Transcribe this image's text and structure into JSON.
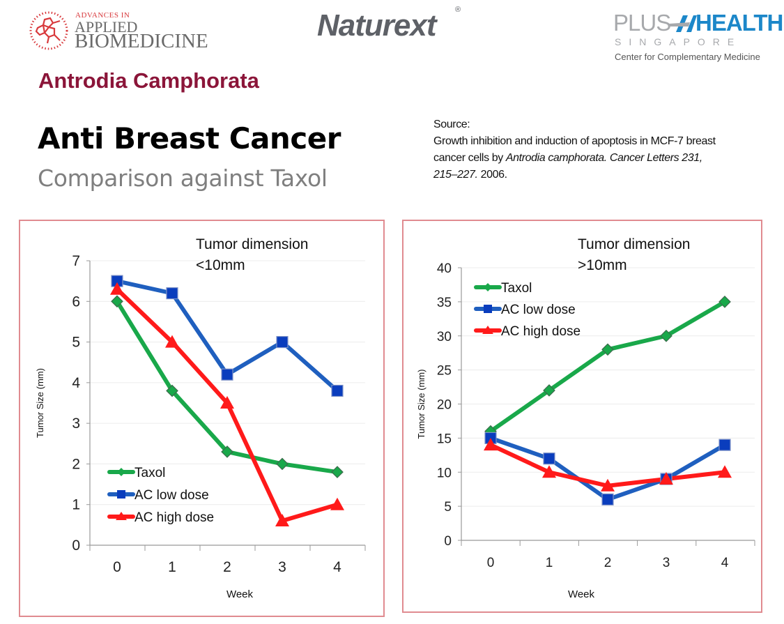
{
  "logos": {
    "abm": {
      "small": "ADVANCES IN",
      "line1": "APPLIED",
      "line2": "BIOMEDICINE"
    },
    "naturext": {
      "name": "Naturext",
      "reg": "®"
    },
    "plushealth": {
      "plus": "PLUS",
      "health": "HEALTH",
      "country": "SINGAPORE",
      "tagline": "Center for Complementary Medicine"
    }
  },
  "header": {
    "kicker": "Antrodia Camphorata",
    "title": "Anti Breast Cancer",
    "subtitle": "Comparison against Taxol"
  },
  "source": {
    "label": "Source:",
    "text_1": "Growth inhibition and induction of apoptosis in MCF-7 breast cancer cells by ",
    "species": "Antrodia camphorata. Cancer Letters 231, 215–227.",
    "year": " 2006."
  },
  "colors": {
    "taxol": "#19a84a",
    "ac_low": "#1f5fbf",
    "ac_low_marker": "#0a3dbd",
    "ac_high": "#ff1a1a",
    "panel_border": "#e08b90",
    "kicker": "#8b1539"
  },
  "chart_data": [
    {
      "type": "line",
      "annotation": [
        "Tumor dimension",
        "<10mm"
      ],
      "xlabel": "Week",
      "ylabel": "Tumor Size (mm)",
      "categories": [
        "0",
        "1",
        "2",
        "3",
        "4"
      ],
      "ylim": [
        0,
        7
      ],
      "yticks": [
        0,
        1,
        2,
        3,
        4,
        5,
        6,
        7
      ],
      "grid": true,
      "legend": "bottom-left",
      "series": [
        {
          "name": "Taxol",
          "marker": "diamond",
          "values": [
            6.0,
            3.8,
            2.3,
            2.0,
            1.8
          ]
        },
        {
          "name": "AC low dose",
          "marker": "square",
          "values": [
            6.5,
            6.2,
            4.2,
            5.0,
            3.8
          ]
        },
        {
          "name": "AC high dose",
          "marker": "triangle",
          "values": [
            6.3,
            5.0,
            3.5,
            0.6,
            1.0
          ]
        }
      ]
    },
    {
      "type": "line",
      "annotation": [
        "Tumor dimension",
        ">10mm"
      ],
      "xlabel": "Week",
      "ylabel": "Tumor Size (mm)",
      "categories": [
        "0",
        "1",
        "2",
        "3",
        "4"
      ],
      "ylim": [
        0,
        40
      ],
      "yticks": [
        0,
        5,
        10,
        15,
        20,
        25,
        30,
        35,
        40
      ],
      "grid": true,
      "legend": "top-left",
      "series": [
        {
          "name": "Taxol",
          "marker": "diamond",
          "values": [
            16,
            22,
            28,
            30,
            35
          ]
        },
        {
          "name": "AC low dose",
          "marker": "square",
          "values": [
            15,
            12,
            6,
            9,
            14
          ]
        },
        {
          "name": "AC high dose",
          "marker": "triangle",
          "values": [
            14,
            10,
            8,
            9,
            10
          ]
        }
      ]
    }
  ]
}
